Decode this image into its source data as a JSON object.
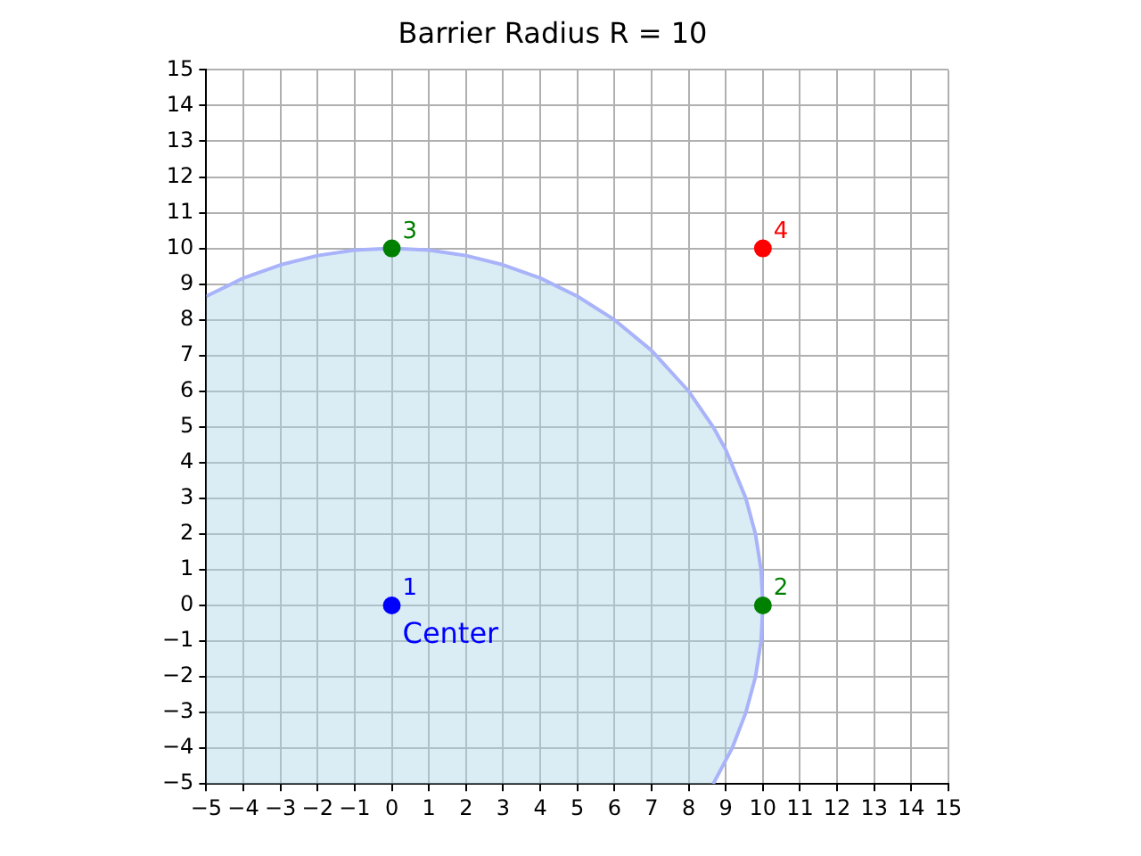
{
  "chart_data": {
    "type": "scatter",
    "title": "Barrier Radius R = 10",
    "xlim": [
      -5,
      15
    ],
    "ylim": [
      -5,
      15
    ],
    "xticks": [
      {
        "value": -5,
        "label": "−5"
      },
      {
        "value": -4,
        "label": "−4"
      },
      {
        "value": -3,
        "label": "−3"
      },
      {
        "value": -2,
        "label": "−2"
      },
      {
        "value": -1,
        "label": "−1"
      },
      0,
      1,
      2,
      3,
      4,
      5,
      6,
      7,
      8,
      9,
      10,
      11,
      12,
      13,
      14,
      15
    ],
    "yticks": [
      {
        "value": -5,
        "label": "−5"
      },
      {
        "value": -4,
        "label": "−4"
      },
      {
        "value": -3,
        "label": "−3"
      },
      {
        "value": -2,
        "label": "−2"
      },
      {
        "value": -1,
        "label": "−1"
      },
      0,
      1,
      2,
      3,
      4,
      5,
      6,
      7,
      8,
      9,
      10,
      11,
      12,
      13,
      14,
      15
    ],
    "grid": true,
    "legend": false,
    "annotations": [
      {
        "text": "Center",
        "x": 0,
        "y": 0
      }
    ],
    "series": [
      {
        "type": "area",
        "color": "#a9b3fa",
        "x": [
          -5,
          -4,
          -3,
          -2,
          -1,
          0,
          1,
          2,
          3,
          4,
          5,
          6,
          7,
          8,
          8.66,
          9,
          9.54,
          9.8,
          9.95,
          10,
          9.95,
          9.8,
          9.54,
          9.17,
          8.66,
          -5
        ],
        "values": [
          8.66,
          9.17,
          9.54,
          9.8,
          9.95,
          10,
          9.95,
          9.8,
          9.54,
          9.17,
          8.66,
          8,
          7.14,
          6,
          5,
          4.36,
          3,
          2,
          1,
          0,
          -1,
          -2,
          -3,
          -4,
          -5,
          -5
        ]
      },
      {
        "name": "1",
        "color": "#0000ff",
        "marker": "circle",
        "x": [
          0
        ],
        "values": [
          0
        ]
      },
      {
        "name": "2",
        "color": "#008000",
        "marker": "circle",
        "x": [
          10
        ],
        "values": [
          0
        ]
      },
      {
        "name": "3",
        "color": "#008000",
        "marker": "circle",
        "x": [
          0
        ],
        "values": [
          10
        ]
      },
      {
        "name": "4",
        "color": "#ff0000",
        "marker": "circle",
        "x": [
          10
        ],
        "values": [
          10
        ]
      }
    ]
  }
}
